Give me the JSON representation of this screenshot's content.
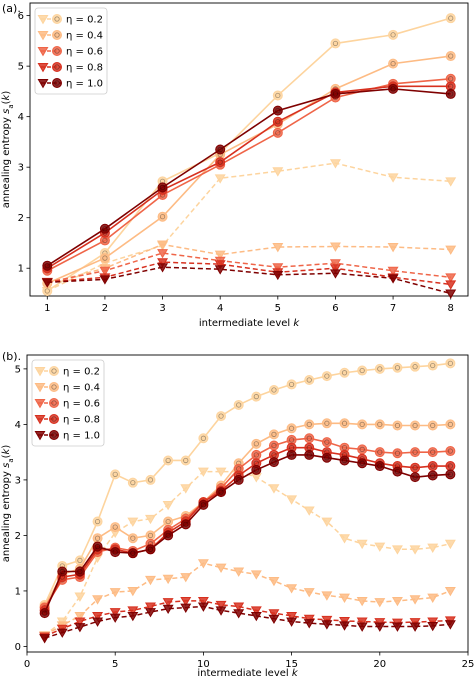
{
  "chart_data": [
    {
      "type": "line",
      "panel_label": "(a).",
      "xlabel": "intermediate level k",
      "ylabel": "annealing entropy s_a(k)",
      "xlim": [
        0.7,
        8.3
      ],
      "ylim": [
        0.45,
        6.25
      ],
      "xticks": [
        1,
        2,
        3,
        4,
        5,
        6,
        7,
        8
      ],
      "yticks": [
        1,
        2,
        3,
        4,
        5,
        6
      ],
      "legend_position": "upper-left",
      "x": [
        1,
        2,
        3,
        4,
        5,
        6,
        7,
        8
      ],
      "series": [
        {
          "name": "η = 0.2",
          "color": "#fdd49e",
          "solid": [
            0.55,
            1.3,
            2.72,
            3.28,
            4.42,
            5.45,
            5.62,
            5.95
          ],
          "dashed": [
            0.55,
            1.1,
            1.45,
            2.78,
            2.92,
            3.08,
            2.8,
            2.72
          ]
        },
        {
          "name": "η = 0.4",
          "color": "#fdbb84",
          "solid": [
            0.7,
            1.2,
            2.02,
            3.25,
            3.85,
            4.55,
            5.05,
            5.2
          ],
          "dashed": [
            0.7,
            1.0,
            1.47,
            1.27,
            1.42,
            1.43,
            1.42,
            1.37
          ]
        },
        {
          "name": "η = 0.6",
          "color": "#ef6548",
          "solid": [
            0.95,
            1.55,
            2.45,
            3.05,
            3.68,
            4.38,
            4.65,
            4.75
          ],
          "dashed": [
            0.72,
            0.95,
            1.3,
            1.15,
            1.02,
            1.1,
            0.95,
            0.82
          ]
        },
        {
          "name": "η = 0.8",
          "color": "#d7301f",
          "solid": [
            1.0,
            1.7,
            2.55,
            3.1,
            3.9,
            4.48,
            4.6,
            4.6
          ],
          "dashed": [
            0.73,
            0.82,
            1.12,
            1.08,
            0.92,
            1.0,
            0.82,
            0.68
          ]
        },
        {
          "name": "η = 1.0",
          "color": "#7f0000",
          "solid": [
            1.05,
            1.78,
            2.6,
            3.35,
            4.12,
            4.45,
            4.55,
            4.45
          ],
          "dashed": [
            0.72,
            0.78,
            1.02,
            0.98,
            0.87,
            0.9,
            0.8,
            0.5
          ]
        }
      ]
    },
    {
      "type": "line",
      "panel_label": "(b).",
      "xlabel": "intermediate level k",
      "ylabel": "annealing entropy s_a(k)",
      "xlim": [
        0.0,
        25.0
      ],
      "ylim": [
        -0.1,
        5.25
      ],
      "xticks": [
        0,
        5,
        10,
        15,
        20,
        25
      ],
      "yticks": [
        0,
        1,
        2,
        3,
        4,
        5
      ],
      "legend_position": "upper-left",
      "x": [
        1,
        2,
        3,
        4,
        5,
        6,
        7,
        8,
        9,
        10,
        11,
        12,
        13,
        14,
        15,
        16,
        17,
        18,
        19,
        20,
        21,
        22,
        23,
        24
      ],
      "series": [
        {
          "name": "η = 0.2",
          "color": "#fdd49e",
          "solid": [
            0.75,
            1.45,
            1.55,
            2.25,
            3.1,
            2.95,
            3.0,
            3.35,
            3.35,
            3.75,
            4.15,
            4.35,
            4.5,
            4.62,
            4.72,
            4.8,
            4.87,
            4.93,
            4.97,
            5.0,
            5.02,
            5.04,
            5.06,
            5.1
          ],
          "dashed": [
            0.2,
            0.45,
            0.9,
            1.6,
            2.05,
            2.25,
            2.3,
            2.55,
            2.85,
            3.15,
            3.15,
            3.15,
            3.05,
            2.85,
            2.65,
            2.45,
            2.25,
            1.95,
            1.85,
            1.8,
            1.75,
            1.75,
            1.78,
            1.85
          ]
        },
        {
          "name": "η = 0.4",
          "color": "#fdbb84",
          "solid": [
            0.72,
            1.3,
            1.4,
            1.95,
            2.15,
            1.95,
            2.0,
            2.25,
            2.35,
            2.6,
            2.9,
            3.3,
            3.65,
            3.82,
            3.93,
            4.0,
            4.02,
            4.02,
            4.0,
            4.0,
            3.98,
            3.98,
            3.98,
            4.0
          ],
          "dashed": [
            0.2,
            0.38,
            0.55,
            0.85,
            0.98,
            1.0,
            1.2,
            1.22,
            1.25,
            1.5,
            1.42,
            1.35,
            1.3,
            1.18,
            1.05,
            0.98,
            0.92,
            0.88,
            0.82,
            0.8,
            0.82,
            0.85,
            0.88,
            1.0
          ]
        },
        {
          "name": "η = 0.6",
          "color": "#ef6548",
          "solid": [
            0.7,
            1.2,
            1.25,
            1.7,
            1.78,
            1.72,
            1.85,
            2.1,
            2.3,
            2.6,
            2.85,
            3.2,
            3.45,
            3.62,
            3.72,
            3.75,
            3.68,
            3.58,
            3.55,
            3.5,
            3.48,
            3.5,
            3.5,
            3.52
          ]
        },
        {
          "name": "η = 0.8",
          "color": "#d7301f",
          "solid": [
            0.65,
            1.25,
            1.3,
            1.75,
            1.75,
            1.68,
            1.75,
            2.05,
            2.25,
            2.6,
            2.8,
            3.08,
            3.3,
            3.45,
            3.58,
            3.58,
            3.5,
            3.45,
            3.38,
            3.3,
            3.25,
            3.22,
            3.25,
            3.25
          ],
          "dashed": [
            0.18,
            0.32,
            0.45,
            0.55,
            0.62,
            0.65,
            0.72,
            0.8,
            0.82,
            0.82,
            0.75,
            0.72,
            0.65,
            0.6,
            0.55,
            0.5,
            0.48,
            0.46,
            0.45,
            0.44,
            0.43,
            0.44,
            0.45,
            0.47
          ]
        },
        {
          "name": "η = 1.0",
          "color": "#7f0000",
          "solid": [
            0.6,
            1.35,
            1.35,
            1.8,
            1.7,
            1.68,
            1.75,
            2.0,
            2.2,
            2.55,
            2.78,
            3.0,
            3.18,
            3.32,
            3.45,
            3.45,
            3.4,
            3.35,
            3.3,
            3.25,
            3.15,
            3.05,
            3.08,
            3.1
          ],
          "dashed": [
            0.15,
            0.25,
            0.35,
            0.45,
            0.52,
            0.55,
            0.62,
            0.68,
            0.7,
            0.72,
            0.65,
            0.6,
            0.55,
            0.5,
            0.45,
            0.42,
            0.4,
            0.38,
            0.36,
            0.36,
            0.36,
            0.36,
            0.37,
            0.4
          ]
        }
      ]
    }
  ]
}
